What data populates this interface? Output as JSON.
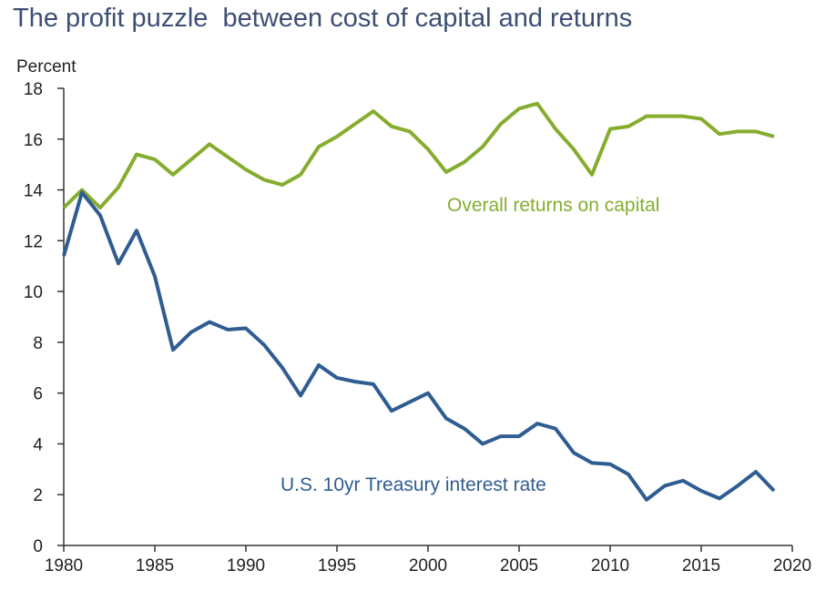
{
  "chart_data": {
    "type": "line",
    "title": "The profit puzzle  between cost of capital and returns",
    "ylabel": "Percent",
    "xlabel": "",
    "xlim": [
      1980,
      2020
    ],
    "ylim": [
      0,
      18
    ],
    "xticks": [
      1980,
      1985,
      1990,
      1995,
      2000,
      2005,
      2010,
      2015,
      2020
    ],
    "yticks": [
      0,
      2,
      4,
      6,
      8,
      10,
      12,
      14,
      16,
      18
    ],
    "grid": false,
    "x": [
      1980,
      1981,
      1982,
      1983,
      1984,
      1985,
      1986,
      1987,
      1988,
      1989,
      1990,
      1991,
      1992,
      1993,
      1994,
      1995,
      1996,
      1997,
      1998,
      1999,
      2000,
      2001,
      2002,
      2003,
      2004,
      2005,
      2006,
      2007,
      2008,
      2009,
      2010,
      2011,
      2012,
      2013,
      2014,
      2015,
      2016,
      2017,
      2018,
      2019
    ],
    "series": [
      {
        "name": "Overall returns on capital",
        "color": "#86ad2f",
        "values": [
          13.3,
          14.0,
          13.3,
          14.1,
          15.4,
          15.2,
          14.6,
          15.2,
          15.8,
          15.3,
          14.8,
          14.4,
          14.2,
          14.6,
          15.7,
          16.1,
          16.6,
          17.1,
          16.5,
          16.3,
          15.6,
          14.7,
          15.1,
          15.7,
          16.6,
          17.2,
          17.4,
          16.4,
          15.6,
          14.6,
          16.4,
          16.5,
          16.9,
          16.9,
          16.9,
          16.8,
          16.2,
          16.3,
          16.3,
          16.1
        ]
      },
      {
        "name": "U.S. 10yr Treasury interest rate",
        "color": "#2f5d92",
        "values": [
          11.4,
          13.9,
          13.0,
          11.1,
          12.4,
          10.6,
          7.7,
          8.4,
          8.8,
          8.5,
          8.55,
          7.9,
          7.0,
          5.9,
          7.1,
          6.6,
          6.45,
          6.35,
          5.3,
          5.65,
          6.0,
          5.0,
          4.6,
          4.0,
          4.3,
          4.3,
          4.8,
          4.6,
          3.65,
          3.25,
          3.2,
          2.8,
          1.8,
          2.35,
          2.55,
          2.15,
          1.85,
          2.35,
          2.9,
          2.15
        ]
      }
    ]
  }
}
